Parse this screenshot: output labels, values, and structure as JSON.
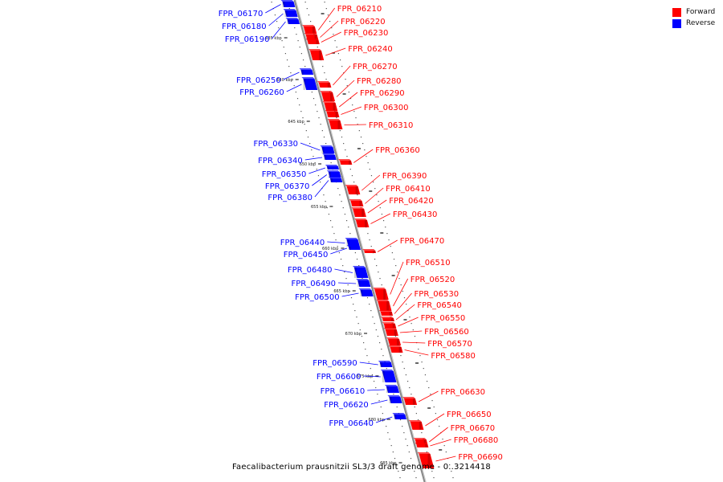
{
  "title": "Faecalibacterium prausnitzii SL3/3 draft genome - 0..3214418",
  "legend": [
    {
      "label": "Forward",
      "color": "#ff0000"
    },
    {
      "label": "Reverse",
      "color": "#0000ff"
    }
  ],
  "colors": {
    "forward": "#ff0000",
    "reverse": "#0000ff",
    "backbone": "#888888"
  },
  "kbp_ticks": [
    "635 kbp",
    "640 kbp",
    "645 kbp",
    "650 kbp",
    "655 kbp",
    "660 kbp",
    "665 kbp",
    "670 kbp",
    "675 kbp",
    "680 kbp",
    "685 kbp"
  ],
  "forward_genes": [
    "FPR_06210",
    "FPR_06220",
    "FPR_06230",
    "FPR_06240",
    "FPR_06270",
    "FPR_06280",
    "FPR_06290",
    "FPR_06300",
    "FPR_06310",
    "FPR_06360",
    "FPR_06390",
    "FPR_06410",
    "FPR_06420",
    "FPR_06430",
    "FPR_06470",
    "FPR_06510",
    "FPR_06520",
    "FPR_06530",
    "FPR_06540",
    "FPR_06550",
    "FPR_06560",
    "FPR_06570",
    "FPR_06580",
    "FPR_06630",
    "FPR_06650",
    "FPR_06670",
    "FPR_06680",
    "FPR_06690"
  ],
  "reverse_genes": [
    "FPR_06170",
    "FPR_06180",
    "FPR_06190",
    "FPR_06250",
    "FPR_06260",
    "FPR_06330",
    "FPR_06340",
    "FPR_06350",
    "FPR_06370",
    "FPR_06380",
    "FPR_06440",
    "FPR_06450",
    "FPR_06480",
    "FPR_06490",
    "FPR_06500",
    "FPR_06590",
    "FPR_06600",
    "FPR_06610",
    "FPR_06620",
    "FPR_06640"
  ]
}
